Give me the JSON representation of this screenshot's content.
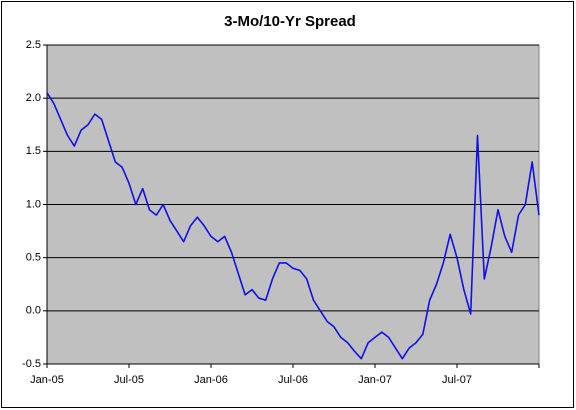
{
  "chart_data": {
    "type": "line",
    "title": "3-Mo/10-Yr Spread",
    "categories": [
      "Jan-05",
      null,
      null,
      null,
      null,
      null,
      null,
      null,
      null,
      null,
      null,
      null,
      "Jul-05",
      null,
      null,
      null,
      null,
      null,
      null,
      null,
      null,
      null,
      null,
      null,
      "Jan-06",
      null,
      null,
      null,
      null,
      null,
      null,
      null,
      null,
      null,
      null,
      null,
      "Jul-06",
      null,
      null,
      null,
      null,
      null,
      null,
      null,
      null,
      null,
      null,
      null,
      "Jan-07",
      null,
      null,
      null,
      null,
      null,
      null,
      null,
      null,
      null,
      null,
      null,
      "Jul-07",
      null,
      null,
      null,
      null,
      null,
      null,
      null,
      null,
      null,
      null,
      null,
      null
    ],
    "series": [
      {
        "color": "#1010e8",
        "values": [
          2.05,
          1.95,
          1.8,
          1.65,
          1.55,
          1.7,
          1.75,
          1.85,
          1.8,
          1.6,
          1.4,
          1.35,
          1.2,
          1.0,
          1.15,
          0.95,
          0.9,
          1.0,
          0.85,
          0.75,
          0.65,
          0.8,
          0.88,
          0.8,
          0.7,
          0.65,
          0.7,
          0.55,
          0.35,
          0.15,
          0.2,
          0.12,
          0.1,
          0.3,
          0.45,
          0.45,
          0.4,
          0.38,
          0.3,
          0.1,
          0.0,
          -0.1,
          -0.15,
          -0.25,
          -0.3,
          -0.38,
          -0.45,
          -0.3,
          -0.25,
          -0.2,
          -0.25,
          -0.35,
          -0.45,
          -0.35,
          -0.3,
          -0.22,
          0.1,
          0.25,
          0.45,
          0.72,
          0.5,
          0.2,
          -0.03,
          1.65,
          0.3,
          0.6,
          0.95,
          0.7,
          0.55,
          0.9,
          1.0,
          1.4,
          0.9
        ]
      }
    ],
    "ylim": [
      -0.5,
      2.5
    ],
    "yticks": [
      -0.5,
      {
        "value": 0,
        "label": "0.0"
      },
      0.5,
      {
        "value": 1,
        "label": "1.0"
      },
      1.5,
      {
        "value": 2,
        "label": "2.0"
      },
      2.5
    ],
    "grid": true,
    "plot_background": "#c0c0c0"
  }
}
